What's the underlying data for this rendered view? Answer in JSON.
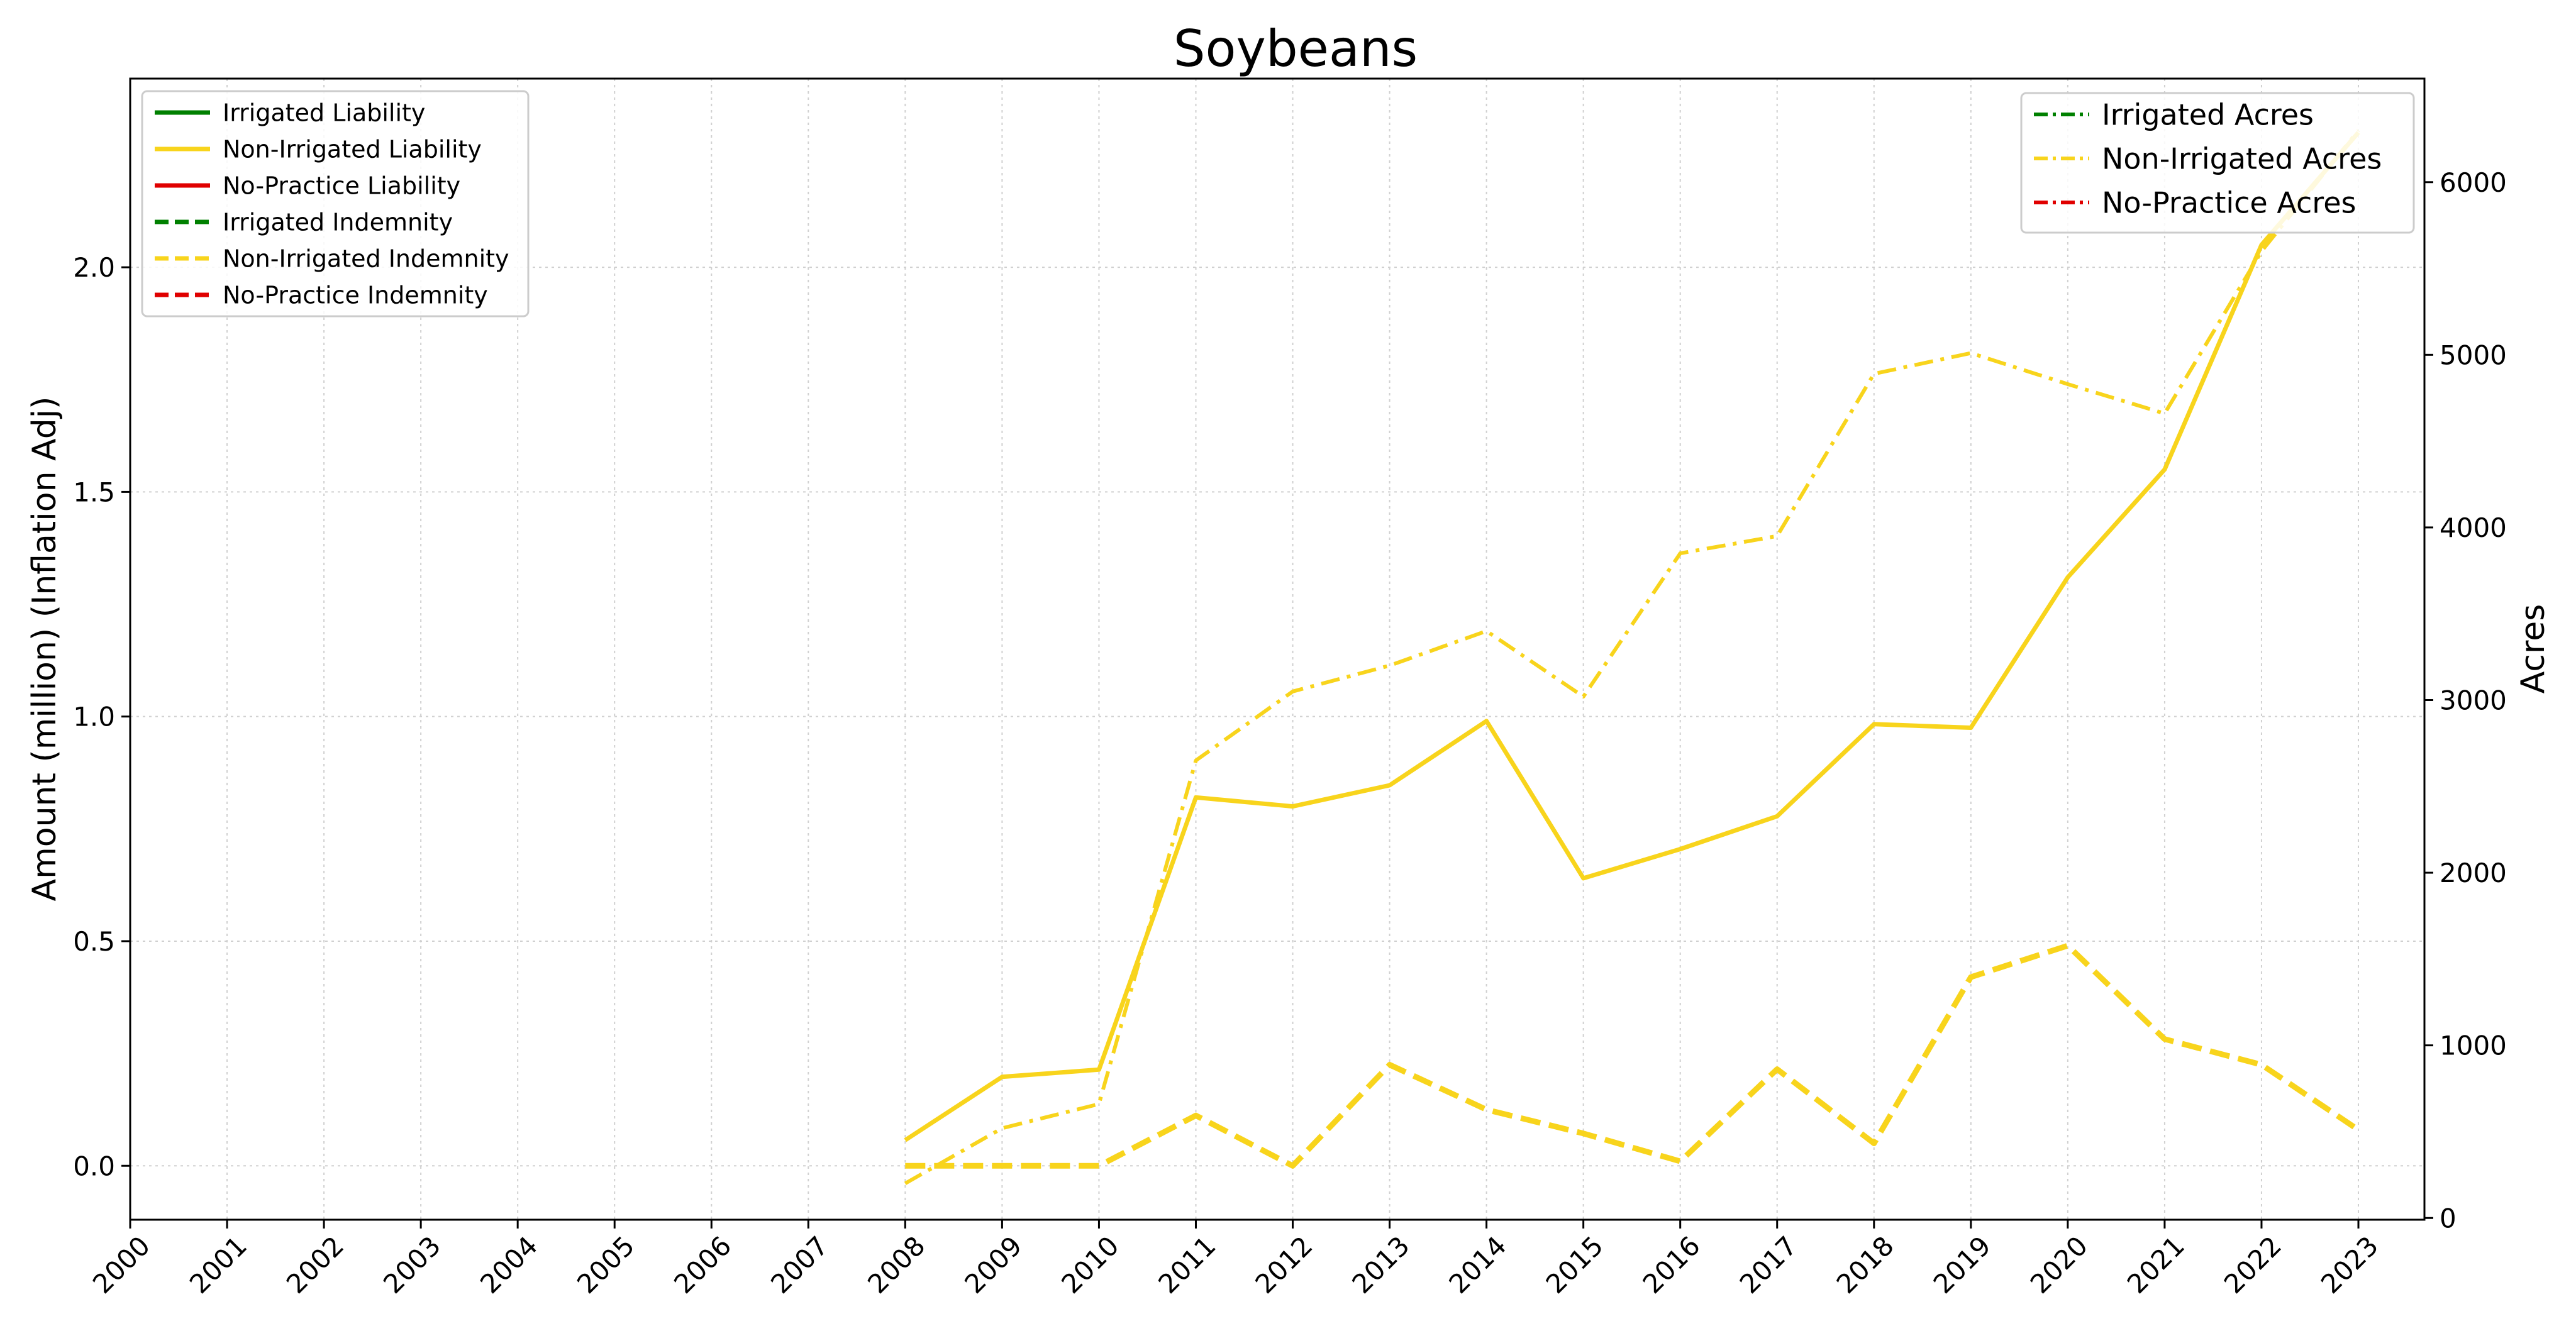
{
  "chart_data": {
    "type": "line",
    "title": "Soybeans",
    "ylabel_left": "Amount (million) (Inflation Adj)",
    "ylabel_right": "Acres",
    "x": [
      2000,
      2001,
      2002,
      2003,
      2004,
      2005,
      2006,
      2007,
      2008,
      2009,
      2010,
      2011,
      2012,
      2013,
      2014,
      2015,
      2016,
      2017,
      2018,
      2019,
      2020,
      2021,
      2022,
      2023
    ],
    "x_tick_labels": [
      "2000",
      "2001",
      "2002",
      "2003",
      "2004",
      "2005",
      "2006",
      "2007",
      "2008",
      "2009",
      "2010",
      "2011",
      "2012",
      "2013",
      "2014",
      "2015",
      "2016",
      "2017",
      "2018",
      "2019",
      "2020",
      "2021",
      "2022",
      "2023"
    ],
    "ylim_left": [
      -0.12,
      2.42
    ],
    "yticks_left": [
      "0.0",
      "0.5",
      "1.0",
      "1.5",
      "2.0"
    ],
    "ylim_right": [
      -10,
      6600
    ],
    "yticks_right": [
      "0",
      "1000",
      "2000",
      "3000",
      "4000",
      "5000",
      "6000"
    ],
    "grid": true,
    "legend_left_placement": "top-left",
    "legend_right_placement": "top-right",
    "colors": {
      "irrigated": "#008000",
      "non_irrigated": "#F8D41C",
      "no_practice": "#E00000"
    },
    "series_left": [
      {
        "name": "Irrigated Liability",
        "group": "irrigated",
        "style": "solid",
        "x": [],
        "values": []
      },
      {
        "name": "Non-Irrigated Liability",
        "group": "non_irrigated",
        "style": "solid",
        "x": [
          2008,
          2009,
          2010,
          2011,
          2012,
          2013,
          2014,
          2015,
          2016,
          2017,
          2018,
          2019,
          2020,
          2021,
          2022,
          2023
        ],
        "values": [
          0.057,
          0.198,
          0.214,
          0.82,
          0.8,
          0.847,
          0.99,
          0.64,
          0.705,
          0.778,
          0.983,
          0.975,
          1.31,
          1.55,
          2.05,
          2.3
        ]
      },
      {
        "name": "No-Practice Liability",
        "group": "no_practice",
        "style": "solid",
        "x": [],
        "values": []
      },
      {
        "name": "Irrigated Indemnity",
        "group": "irrigated",
        "style": "dashed",
        "x": [],
        "values": []
      },
      {
        "name": "Non-Irrigated Indemnity",
        "group": "non_irrigated",
        "style": "dashed",
        "x": [
          2008,
          2009,
          2010,
          2011,
          2012,
          2013,
          2014,
          2015,
          2016,
          2017,
          2018,
          2019,
          2020,
          2021,
          2022,
          2023
        ],
        "values": [
          0.0,
          0.0,
          0.0,
          0.112,
          0.0,
          0.225,
          0.125,
          0.072,
          0.01,
          0.215,
          0.05,
          0.42,
          0.49,
          0.282,
          0.225,
          0.08
        ]
      },
      {
        "name": "No-Practice Indemnity",
        "group": "no_practice",
        "style": "dashed",
        "x": [],
        "values": []
      }
    ],
    "series_right": [
      {
        "name": "Irrigated Acres",
        "group": "irrigated",
        "style": "dashdot",
        "x": [],
        "values": []
      },
      {
        "name": "Non-Irrigated Acres",
        "group": "non_irrigated",
        "style": "dashdot",
        "x": [
          2008,
          2009,
          2010,
          2011,
          2012,
          2013,
          2014,
          2015,
          2016,
          2017,
          2018,
          2019,
          2020,
          2021,
          2022,
          2023
        ],
        "values": [
          200,
          520,
          660,
          2650,
          3050,
          3200,
          3400,
          3020,
          3850,
          3950,
          4890,
          5010,
          4830,
          4660,
          5600,
          6300
        ]
      },
      {
        "name": "No-Practice Acres",
        "group": "no_practice",
        "style": "dashdot",
        "x": [],
        "values": []
      }
    ]
  }
}
